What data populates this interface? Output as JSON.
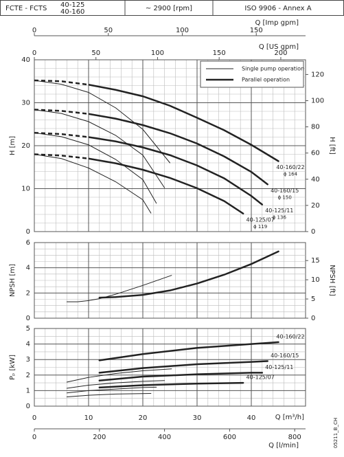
{
  "header": {
    "product": "FCTE - FCTS",
    "models": [
      "40-125",
      "40-160"
    ],
    "speed": "~ 2900 [rpm]",
    "standard": "ISO 9906 - Annex A"
  },
  "code": "05211_B_CH",
  "chart_data": [
    {
      "type": "line",
      "ylabel": "H [m]",
      "y2label": "H [ft]",
      "xlim": [
        0,
        50
      ],
      "xticks": [
        0,
        10,
        20,
        30,
        40
      ],
      "ylim": [
        0,
        40
      ],
      "yticks": [
        0,
        10,
        20,
        30,
        40
      ],
      "y2lim": [
        0,
        131.23
      ],
      "y2ticks": [
        0,
        20,
        40,
        60,
        80,
        100,
        120
      ],
      "grid": true,
      "minor_xstep": 2,
      "minor_ystep": 2,
      "dashed_below_x": 10,
      "top_axes": [
        {
          "label": "Q [Imp gpm]",
          "lim": [
            0,
            183.3
          ],
          "ticks": [
            0,
            50,
            100,
            150
          ]
        },
        {
          "label": "Q [US gpm]",
          "lim": [
            0,
            220.1
          ],
          "ticks": [
            0,
            50,
            100,
            150,
            200
          ]
        }
      ],
      "legend": {
        "position": "upper right",
        "entries": [
          {
            "name": "Single pump operation",
            "width": 1
          },
          {
            "name": "Parallel operation",
            "width": 2.5
          }
        ]
      },
      "series": [
        {
          "color": "#222",
          "width": 1,
          "x": [
            0,
            5,
            10,
            15,
            20,
            25
          ],
          "values": [
            35.2,
            34.3,
            32.4,
            28.8,
            23.8,
            16.0
          ]
        },
        {
          "color": "#222",
          "width": 1,
          "x": [
            0,
            5,
            10,
            15,
            20,
            24
          ],
          "values": [
            28.4,
            27.5,
            25.6,
            22.4,
            17.8,
            10.2
          ]
        },
        {
          "color": "#222",
          "width": 1,
          "x": [
            0,
            5,
            10,
            15,
            20,
            22.5
          ],
          "values": [
            23.0,
            22.1,
            20.2,
            16.8,
            12.1,
            6.6
          ]
        },
        {
          "color": "#222",
          "width": 1,
          "x": [
            0,
            5,
            10,
            15,
            20,
            21.5
          ],
          "values": [
            18.0,
            17.0,
            14.8,
            11.6,
            7.4,
            4.3
          ]
        },
        {
          "name": "40-160/22",
          "note": "ϕ 164",
          "color": "#222",
          "width": 2.5,
          "x": [
            0,
            5,
            10,
            15,
            20,
            25,
            30,
            35,
            40,
            45
          ],
          "values": [
            35.2,
            35.0,
            34.2,
            33.0,
            31.5,
            29.3,
            26.5,
            23.6,
            20.2,
            16.4
          ]
        },
        {
          "name": "40-160/15",
          "note": "ϕ 150",
          "color": "#222",
          "width": 2.5,
          "x": [
            0,
            5,
            10,
            15,
            20,
            25,
            30,
            35,
            40,
            43
          ],
          "values": [
            28.4,
            28.1,
            27.4,
            26.3,
            24.8,
            22.9,
            20.5,
            17.5,
            13.9,
            11.0
          ]
        },
        {
          "name": "40-125/11",
          "note": "ϕ 136",
          "color": "#222",
          "width": 2.5,
          "x": [
            0,
            5,
            10,
            15,
            20,
            25,
            30,
            35,
            40,
            42
          ],
          "values": [
            23.0,
            22.7,
            22.0,
            21.0,
            19.6,
            17.8,
            15.4,
            12.4,
            8.3,
            6.3
          ]
        },
        {
          "name": "40-125/07",
          "note": "ϕ 119",
          "color": "#222",
          "width": 2.5,
          "x": [
            0,
            5,
            10,
            15,
            20,
            25,
            30,
            35,
            38.5
          ],
          "values": [
            18.0,
            17.7,
            17.0,
            15.9,
            14.4,
            12.5,
            10.1,
            7.1,
            4.2
          ]
        }
      ]
    },
    {
      "type": "line",
      "ylabel": "NPSH [m]",
      "y2label": "NPSH [ft]",
      "xlim": [
        0,
        50
      ],
      "xticks": [
        0,
        10,
        20,
        30,
        40
      ],
      "ylim": [
        0,
        6
      ],
      "yticks": [
        0,
        2,
        4,
        6
      ],
      "y2lim": [
        0,
        19.685
      ],
      "y2ticks": [
        0,
        5,
        10,
        15
      ],
      "grid": true,
      "minor_xstep": 2,
      "minor_ystep": 0.5,
      "series": [
        {
          "color": "#222",
          "width": 1,
          "x": [
            6,
            8,
            10,
            12,
            15,
            20,
            25.3
          ],
          "values": [
            1.3,
            1.3,
            1.4,
            1.55,
            1.9,
            2.6,
            3.4
          ]
        },
        {
          "color": "#222",
          "width": 2.5,
          "x": [
            12,
            15,
            20,
            25,
            30,
            35,
            40,
            45
          ],
          "values": [
            1.63,
            1.68,
            1.85,
            2.2,
            2.75,
            3.45,
            4.3,
            5.3
          ]
        }
      ]
    },
    {
      "type": "line",
      "ylabel": "Pₚ [kW]",
      "xlabel": "Q [m³/h]",
      "xlim": [
        0,
        50
      ],
      "xticks": [
        0,
        10,
        20,
        30,
        40
      ],
      "ylim": [
        0,
        5
      ],
      "yticks": [
        0,
        1,
        2,
        3,
        4,
        5
      ],
      "grid": true,
      "minor_xstep": 2,
      "minor_ystep": 0.5,
      "bottom_axes": [
        {
          "label": "Q [l/min]",
          "lim": [
            0,
            833.3
          ],
          "ticks": [
            0,
            200,
            400,
            600,
            800
          ]
        }
      ],
      "series": [
        {
          "color": "#222",
          "width": 1,
          "x": [
            6,
            10,
            15,
            20,
            25.3
          ],
          "values": [
            1.55,
            1.85,
            2.1,
            2.28,
            2.4
          ]
        },
        {
          "color": "#222",
          "width": 1,
          "x": [
            6,
            10,
            15,
            20,
            24
          ],
          "values": [
            1.15,
            1.35,
            1.5,
            1.6,
            1.65
          ]
        },
        {
          "color": "#222",
          "width": 1,
          "x": [
            6,
            10,
            15,
            20,
            22.5
          ],
          "values": [
            0.85,
            1.0,
            1.1,
            1.2,
            1.22
          ]
        },
        {
          "color": "#222",
          "width": 1,
          "x": [
            6,
            10,
            15,
            21.5
          ],
          "values": [
            0.6,
            0.7,
            0.78,
            0.82
          ]
        },
        {
          "name": "40-160/22",
          "color": "#222",
          "width": 2.5,
          "x": [
            12,
            20,
            30,
            40,
            45
          ],
          "values": [
            2.95,
            3.35,
            3.75,
            4.0,
            4.12
          ]
        },
        {
          "name": "40-160/15",
          "color": "#222",
          "width": 2.5,
          "x": [
            12,
            20,
            30,
            40,
            43
          ],
          "values": [
            2.15,
            2.45,
            2.7,
            2.85,
            2.9
          ]
        },
        {
          "name": "40-125/11",
          "color": "#222",
          "width": 2.5,
          "x": [
            12,
            20,
            30,
            40,
            42
          ],
          "values": [
            1.65,
            1.9,
            2.05,
            2.15,
            2.15
          ]
        },
        {
          "name": "40-125/07",
          "color": "#222",
          "width": 2.5,
          "x": [
            12,
            20,
            30,
            38.5
          ],
          "values": [
            1.2,
            1.35,
            1.45,
            1.5
          ]
        }
      ]
    }
  ]
}
